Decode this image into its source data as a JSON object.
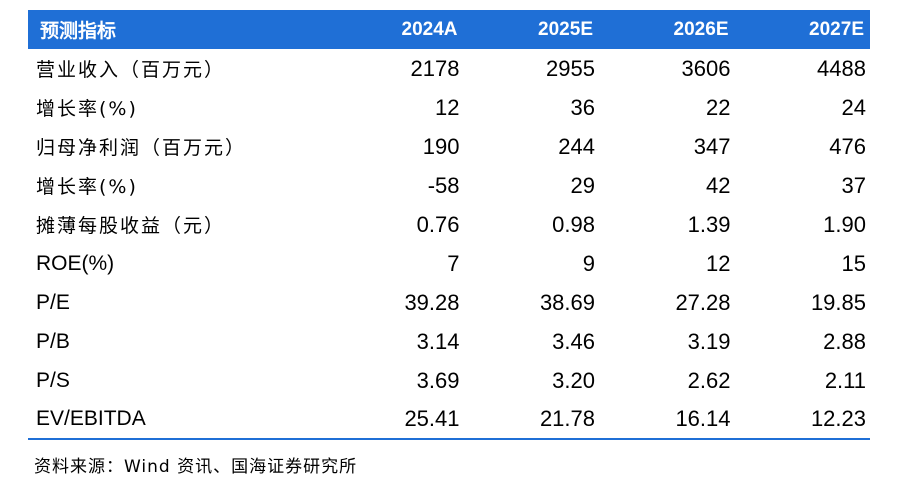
{
  "header": {
    "label": "预测指标",
    "years": [
      "2024A",
      "2025E",
      "2026E",
      "2027E"
    ]
  },
  "rows": [
    {
      "label": "营业收入（百万元）",
      "values": [
        "2178",
        "2955",
        "3606",
        "4488"
      ]
    },
    {
      "label": "增长率(%)",
      "values": [
        "12",
        "36",
        "22",
        "24"
      ]
    },
    {
      "label": "归母净利润（百万元）",
      "values": [
        "190",
        "244",
        "347",
        "476"
      ]
    },
    {
      "label": "增长率(%)",
      "values": [
        "-58",
        "29",
        "42",
        "37"
      ]
    },
    {
      "label": "摊薄每股收益（元）",
      "values": [
        "0.76",
        "0.98",
        "1.39",
        "1.90"
      ]
    },
    {
      "label": "ROE(%)",
      "values": [
        "7",
        "9",
        "12",
        "15"
      ]
    },
    {
      "label": "P/E",
      "values": [
        "39.28",
        "38.69",
        "27.28",
        "19.85"
      ]
    },
    {
      "label": "P/B",
      "values": [
        "3.14",
        "3.46",
        "3.19",
        "2.88"
      ]
    },
    {
      "label": "P/S",
      "values": [
        "3.69",
        "3.20",
        "2.62",
        "2.11"
      ]
    },
    {
      "label": "EV/EBITDA",
      "values": [
        "25.41",
        "21.78",
        "16.14",
        "12.23"
      ]
    }
  ],
  "source": "资料来源：Wind 资讯、国海证券研究所",
  "colors": {
    "header_bg": "#1f6fd6",
    "header_text": "#ffffff",
    "rule": "#1f6fd6"
  }
}
